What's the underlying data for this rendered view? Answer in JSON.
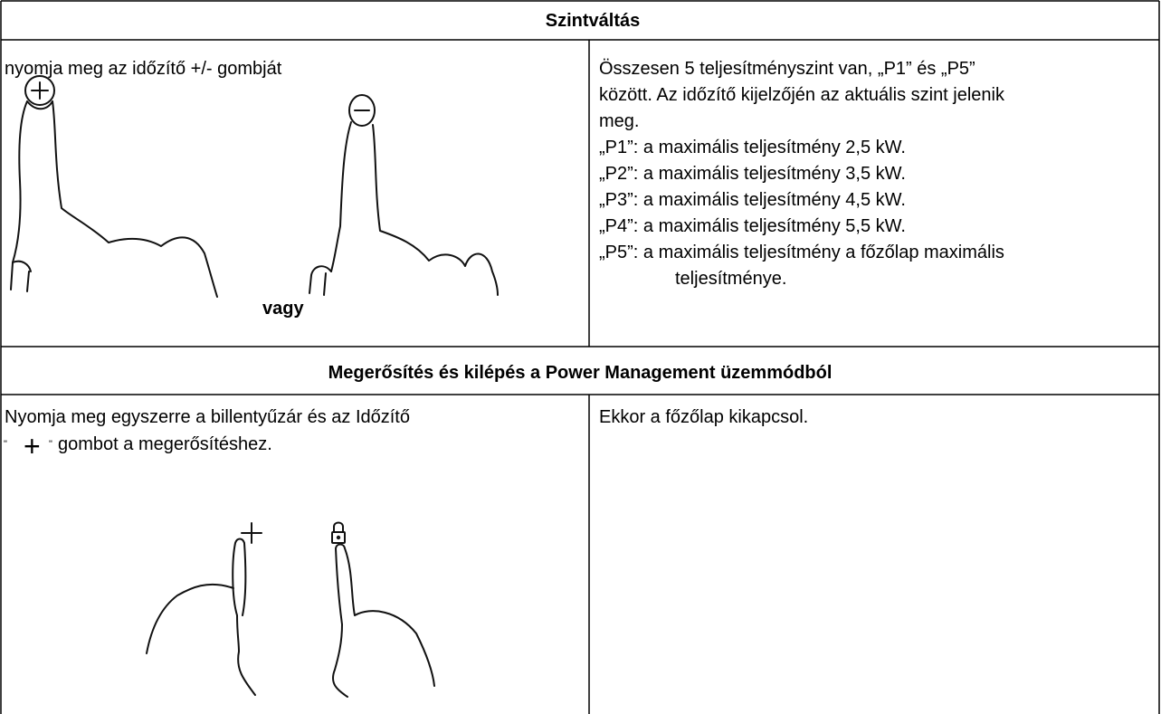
{
  "sections": [
    {
      "title": "Szintváltás",
      "left": {
        "text": "nyomja meg az időzítő +/- gombját",
        "caption": "vagy"
      },
      "right": {
        "lines": [
          "Összesen 5 teljesítményszint van, „P1” és „P5”",
          "között. Az időzítő kijelzőjén az aktuális szint jelenik",
          "meg.",
          "„P1”: a maximális teljesítmény 2,5 kW.",
          "„P2”: a maximális teljesítmény 3,5 kW.",
          "„P3”: a maximális teljesítmény 4,5 kW.",
          "„P4”: a maximális teljesítmény 5,5 kW.",
          "„P5”: a maximális teljesítmény a főzőlap maximális",
          "teljesítménye."
        ]
      }
    },
    {
      "title": "Megerősítés és kilépés a Power Management üzemmódból",
      "left": {
        "line1": "Nyomja meg egyszerre a billentyűzár és az Időzítő",
        "quote_open": "\"",
        "symbol": "+",
        "quote_close": "\"",
        "line2": "gombot a megerősítéshez."
      },
      "right": {
        "text": "Ekkor a főzőlap kikapcsol."
      }
    }
  ]
}
